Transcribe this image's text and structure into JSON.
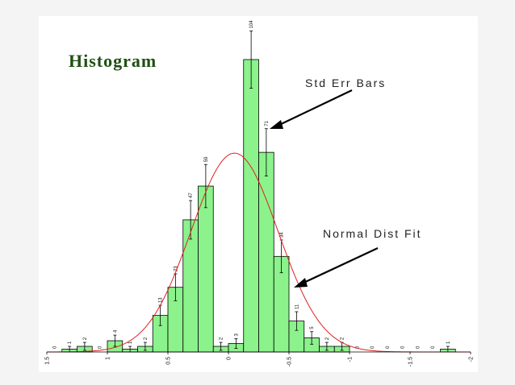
{
  "chart_data": {
    "type": "bar",
    "title": "Histogram",
    "annotations": {
      "err_bars": "Std Err Bars",
      "normal_fit": "Normal Dist Fit"
    },
    "xlim": [
      1.5,
      -2
    ],
    "ylim": [
      0,
      110
    ],
    "x_ticks": [
      {
        "value": 1.5,
        "label": "1.5"
      },
      {
        "value": 1,
        "label": "1"
      },
      {
        "value": 0.5,
        "label": "0.5"
      },
      {
        "value": 0,
        "label": "0"
      },
      {
        "value": -0.5,
        "label": "-0.5"
      },
      {
        "value": -1,
        "label": "-1"
      },
      {
        "value": -1.5,
        "label": "-1.5"
      },
      {
        "value": -2,
        "label": "-2"
      }
    ],
    "bin_width": 0.125,
    "bins": [
      {
        "x": 1.4375,
        "count": 0,
        "label": "0"
      },
      {
        "x": 1.3125,
        "count": 1,
        "label": "1"
      },
      {
        "x": 1.1875,
        "count": 2,
        "label": "2"
      },
      {
        "x": 1.0625,
        "count": 0,
        "label": "0"
      },
      {
        "x": 0.9375,
        "count": 4,
        "label": "4"
      },
      {
        "x": 0.8125,
        "count": 1,
        "label": "1"
      },
      {
        "x": 0.6875,
        "count": 2,
        "label": "2"
      },
      {
        "x": 0.5625,
        "count": 13,
        "label": "13"
      },
      {
        "x": 0.4375,
        "count": 23,
        "label": "23"
      },
      {
        "x": 0.3125,
        "count": 47,
        "label": "47"
      },
      {
        "x": 0.1875,
        "count": 59,
        "label": "59"
      },
      {
        "x": 0.0625,
        "count": 2,
        "label": "2"
      },
      {
        "x": -0.0625,
        "count": 3,
        "label": "3"
      },
      {
        "x": -0.1875,
        "count": 104,
        "label": "104"
      },
      {
        "x": -0.3125,
        "count": 71,
        "label": "71"
      },
      {
        "x": -0.4375,
        "count": 34,
        "label": "34"
      },
      {
        "x": -0.5625,
        "count": 11,
        "label": "11"
      },
      {
        "x": -0.6875,
        "count": 5,
        "label": "5"
      },
      {
        "x": -0.8125,
        "count": 2,
        "label": "2"
      },
      {
        "x": -0.9375,
        "count": 2,
        "label": "2"
      },
      {
        "x": -1.0625,
        "count": 0,
        "label": "0"
      },
      {
        "x": -1.1875,
        "count": 0,
        "label": "0"
      },
      {
        "x": -1.3125,
        "count": 0,
        "label": "0"
      },
      {
        "x": -1.4375,
        "count": 0,
        "label": "0"
      },
      {
        "x": -1.5625,
        "count": 0,
        "label": "0"
      },
      {
        "x": -1.6875,
        "count": 0,
        "label": "0"
      },
      {
        "x": -1.8125,
        "count": 1,
        "label": "1"
      }
    ],
    "normal_fit": {
      "mean": -0.05,
      "sd": 0.36
    },
    "colors": {
      "bar": "#8cf28c",
      "curve": "#e02020",
      "title": "#1f4f13"
    }
  }
}
